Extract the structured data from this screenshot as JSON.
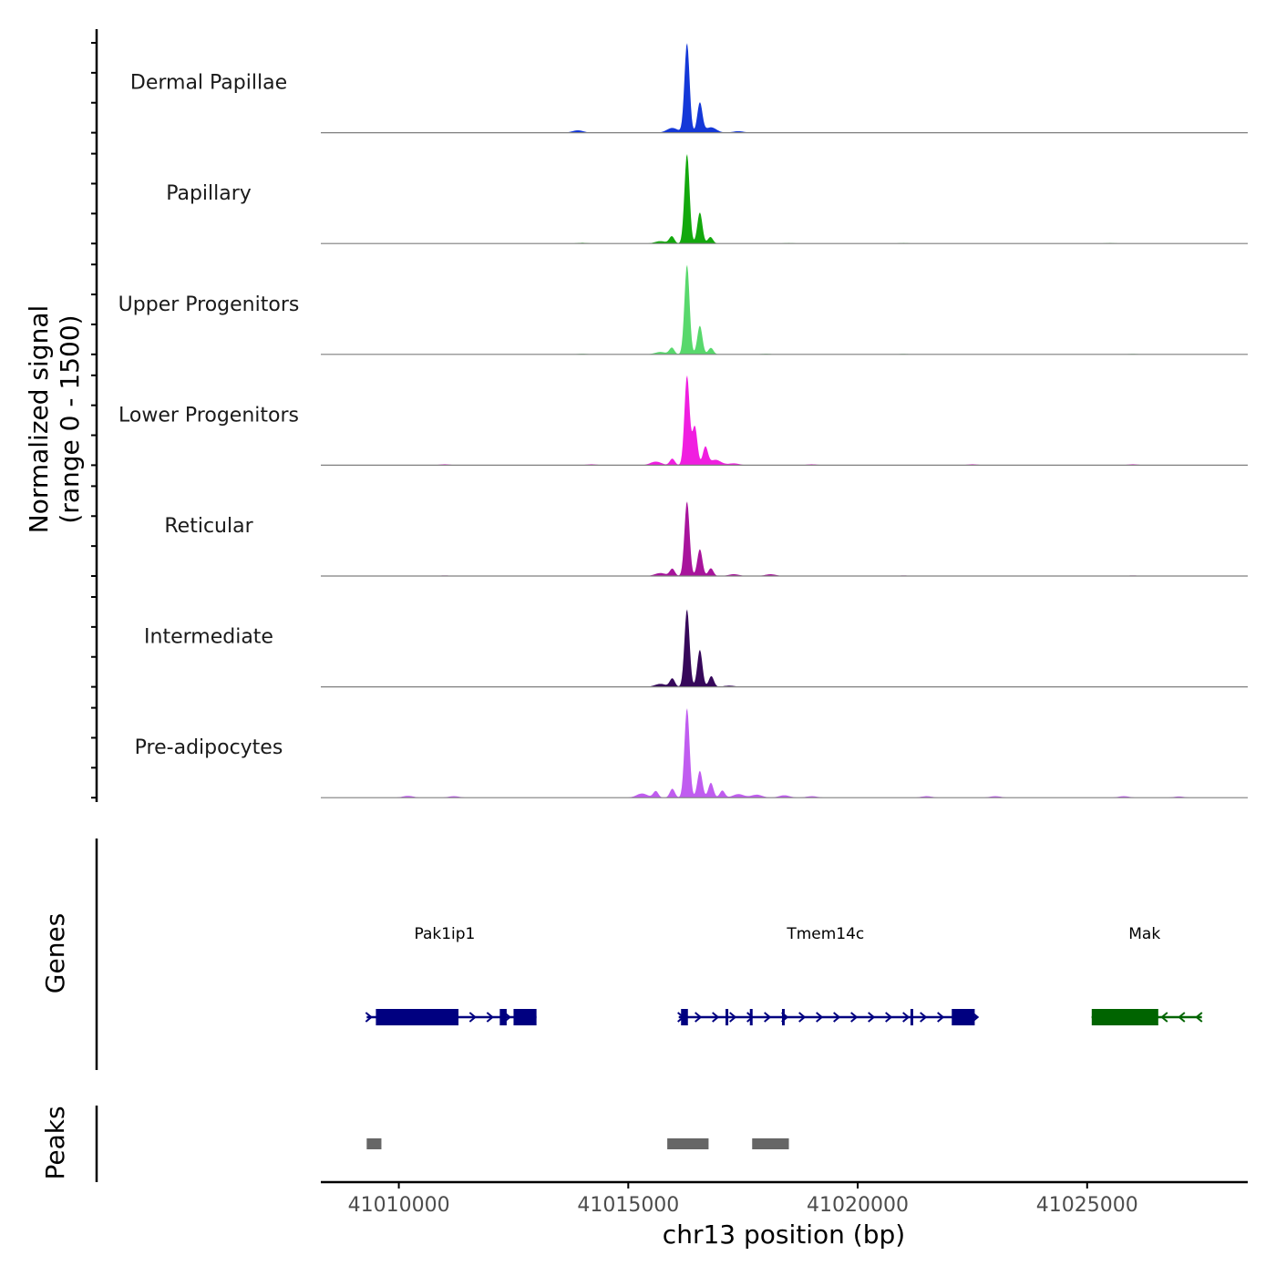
{
  "chart_data": {
    "type": "area",
    "title": "",
    "ylabel_line1": "Normalized signal",
    "ylabel_line2": "(range 0 - 1500)",
    "ylim": [
      0,
      1500
    ],
    "xlabel": "chr13 position (bp)",
    "xlim": [
      41008300,
      41028500
    ],
    "xticks": [
      41010000,
      41015000,
      41020000,
      41025000
    ],
    "xtick_labels": [
      "41010000",
      "41015000",
      "41020000",
      "41025000"
    ],
    "tracks": [
      {
        "name": "Dermal Papillae",
        "color": "#1438d8",
        "peaks": [
          [
            41016280,
            1500
          ],
          [
            41016560,
            500
          ],
          [
            41016800,
            90
          ],
          [
            41015960,
            80
          ],
          [
            41013900,
            40
          ],
          [
            41017400,
            25
          ],
          [
            41011000,
            8
          ],
          [
            41019300,
            8
          ],
          [
            41020900,
            8
          ],
          [
            41026500,
            10
          ]
        ]
      },
      {
        "name": "Papillary",
        "color": "#13a80d",
        "peaks": [
          [
            41016280,
            1500
          ],
          [
            41016560,
            520
          ],
          [
            41016790,
            110
          ],
          [
            41015950,
            120
          ],
          [
            41015700,
            40
          ],
          [
            41014000,
            12
          ],
          [
            41018500,
            8
          ],
          [
            41021000,
            8
          ],
          [
            41025500,
            8
          ]
        ]
      },
      {
        "name": "Upper Progenitors",
        "color": "#58d86c",
        "peaks": [
          [
            41016280,
            1500
          ],
          [
            41016560,
            480
          ],
          [
            41016800,
            110
          ],
          [
            41015950,
            110
          ],
          [
            41015700,
            40
          ],
          [
            41014000,
            10
          ],
          [
            41018000,
            10
          ],
          [
            41021000,
            8
          ],
          [
            41026000,
            8
          ]
        ]
      },
      {
        "name": "Lower Progenitors",
        "color": "#f01ee0",
        "peaks": [
          [
            41016280,
            1500
          ],
          [
            41016450,
            650
          ],
          [
            41016680,
            300
          ],
          [
            41016900,
            90
          ],
          [
            41015960,
            110
          ],
          [
            41015600,
            60
          ],
          [
            41017300,
            30
          ],
          [
            41011000,
            15
          ],
          [
            41014200,
            15
          ],
          [
            41019000,
            15
          ],
          [
            41022500,
            15
          ],
          [
            41026000,
            15
          ]
        ]
      },
      {
        "name": "Reticular",
        "color": "#a8149c",
        "peaks": [
          [
            41016280,
            1250
          ],
          [
            41016560,
            450
          ],
          [
            41016800,
            130
          ],
          [
            41015960,
            120
          ],
          [
            41015700,
            50
          ],
          [
            41017300,
            30
          ],
          [
            41018100,
            30
          ],
          [
            41011000,
            10
          ],
          [
            41021000,
            10
          ],
          [
            41026000,
            10
          ]
        ]
      },
      {
        "name": "Intermediate",
        "color": "#36085a",
        "peaks": [
          [
            41016280,
            1300
          ],
          [
            41016560,
            620
          ],
          [
            41016810,
            180
          ],
          [
            41015960,
            140
          ],
          [
            41015700,
            50
          ],
          [
            41017200,
            20
          ],
          [
            41013000,
            8
          ],
          [
            41020000,
            8
          ],
          [
            41026000,
            8
          ]
        ]
      },
      {
        "name": "Pre-adipocytes",
        "color": "#c05cf0",
        "peaks": [
          [
            41016280,
            1500
          ],
          [
            41016560,
            450
          ],
          [
            41016800,
            250
          ],
          [
            41017050,
            120
          ],
          [
            41015960,
            150
          ],
          [
            41015600,
            110
          ],
          [
            41015300,
            70
          ],
          [
            41017400,
            60
          ],
          [
            41017800,
            50
          ],
          [
            41018400,
            40
          ],
          [
            41010200,
            30
          ],
          [
            41011200,
            25
          ],
          [
            41019000,
            25
          ],
          [
            41021500,
            25
          ],
          [
            41023000,
            25
          ],
          [
            41025800,
            25
          ],
          [
            41027000,
            20
          ]
        ]
      }
    ],
    "genes_label": "Genes",
    "genes": [
      {
        "name": "Pak1ip1",
        "strand": "+",
        "color": "#000080",
        "start": 41009300,
        "end": 41013000,
        "exons": [
          [
            41009500,
            41011300
          ],
          [
            41012200,
            41012350
          ],
          [
            41012500,
            41013000
          ]
        ],
        "label_position": 41011000
      },
      {
        "name": "Tmem14c",
        "strand": "+",
        "color": "#000080",
        "start": 41016100,
        "end": 41022600,
        "exons": [
          [
            41016150,
            41016300
          ],
          [
            41017120,
            41017160
          ],
          [
            41017650,
            41017700
          ],
          [
            41018350,
            41018400
          ],
          [
            41021150,
            41021190
          ],
          [
            41022050,
            41022550
          ]
        ],
        "label_position": 41019300
      },
      {
        "name": "Mak",
        "strand": "-",
        "color": "#006400",
        "start": 41025100,
        "end": 41027500,
        "exons": [
          [
            41025100,
            41026550
          ]
        ],
        "label_position": 41026250
      }
    ],
    "peaks_label": "Peaks",
    "peak_regions": [
      [
        41009300,
        41009620
      ],
      [
        41015850,
        41016750
      ],
      [
        41017700,
        41018500
      ]
    ]
  }
}
